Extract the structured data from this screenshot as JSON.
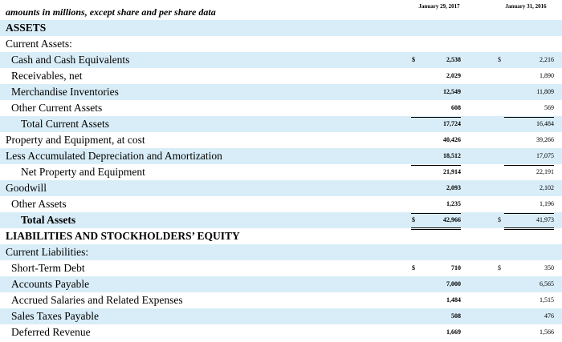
{
  "header": {
    "title": "amounts in millions, except share and per share data",
    "col1": "January 29, 2017",
    "col2": "January 31, 2016"
  },
  "table": {
    "rows": [
      {
        "label": "ASSETS"
      },
      {
        "label": "Current Assets:"
      },
      {
        "label": "Cash and Cash Equivalents",
        "sign1": "$",
        "v1": "2,538",
        "sign2": "$",
        "v2": "2,216"
      },
      {
        "label": "Receivables, net",
        "v1": "2,029",
        "v2": "1,890"
      },
      {
        "label": "Merchandise Inventories",
        "v1": "12,549",
        "v2": "11,809"
      },
      {
        "label": "Other Current Assets",
        "v1": "608",
        "v2": "569"
      },
      {
        "label": "Total Current Assets",
        "v1": "17,724",
        "v2": "16,484"
      },
      {
        "label": "Property and Equipment, at cost",
        "v1": "40,426",
        "v2": "39,266"
      },
      {
        "label": "Less Accumulated Depreciation and Amortization",
        "v1": "18,512",
        "v2": "17,075"
      },
      {
        "label": "Net Property and Equipment",
        "v1": "21,914",
        "v2": "22,191"
      },
      {
        "label": "Goodwill",
        "v1": "2,093",
        "v2": "2,102"
      },
      {
        "label": "Other Assets",
        "v1": "1,235",
        "v2": "1,196"
      },
      {
        "label": "Total Assets",
        "sign1": "$",
        "v1": "42,966",
        "sign2": "$",
        "v2": "41,973"
      },
      {
        "label": "LIABILITIES AND STOCKHOLDERS’ EQUITY"
      },
      {
        "label": "Current Liabilities:"
      },
      {
        "label": "Short-Term Debt",
        "sign1": "$",
        "v1": "710",
        "sign2": "$",
        "v2": "350"
      },
      {
        "label": "Accounts Payable",
        "v1": "7,000",
        "v2": "6,565"
      },
      {
        "label": "Accrued Salaries and Related Expenses",
        "v1": "1,484",
        "v2": "1,515"
      },
      {
        "label": "Sales Taxes Payable",
        "v1": "508",
        "v2": "476"
      },
      {
        "label": "Deferred Revenue",
        "v1": "1,669",
        "v2": "1,566"
      }
    ]
  }
}
